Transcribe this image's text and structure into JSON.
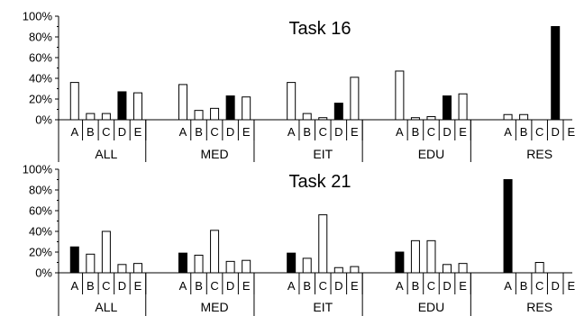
{
  "chart_data": [
    {
      "type": "bar",
      "title": "Task 16",
      "ylim": [
        0,
        100
      ],
      "yticks": [
        "0%",
        "20%",
        "40%",
        "60%",
        "80%",
        "100%"
      ],
      "groups": [
        {
          "name": "ALL",
          "categories": [
            "A",
            "B",
            "C",
            "D",
            "E"
          ],
          "values": [
            36,
            6,
            6,
            27,
            26
          ],
          "highlight": [
            "D"
          ]
        },
        {
          "name": "MED",
          "categories": [
            "A",
            "B",
            "C",
            "D",
            "E"
          ],
          "values": [
            34,
            9,
            11,
            23,
            22
          ],
          "highlight": [
            "D"
          ]
        },
        {
          "name": "EIT",
          "categories": [
            "A",
            "B",
            "C",
            "D",
            "E"
          ],
          "values": [
            36,
            6,
            2,
            16,
            41
          ],
          "highlight": [
            "D"
          ]
        },
        {
          "name": "EDU",
          "categories": [
            "A",
            "B",
            "C",
            "D",
            "E"
          ],
          "values": [
            47,
            2,
            3,
            23,
            25
          ],
          "highlight": [
            "D"
          ]
        },
        {
          "name": "RES",
          "categories": [
            "A",
            "B",
            "C",
            "D",
            "E"
          ],
          "values": [
            5,
            5,
            0,
            90,
            0
          ],
          "highlight": [
            "D"
          ]
        }
      ],
      "colors": {
        "correct": "#000000",
        "other": "#ffffff",
        "stroke": "#000000"
      }
    },
    {
      "type": "bar",
      "title": "Task 21",
      "ylim": [
        0,
        100
      ],
      "yticks": [
        "0%",
        "20%",
        "40%",
        "60%",
        "80%",
        "100%"
      ],
      "groups": [
        {
          "name": "ALL",
          "categories": [
            "A",
            "B",
            "C",
            "D",
            "E"
          ],
          "values": [
            25,
            18,
            40,
            8,
            9
          ],
          "highlight": [
            "A"
          ]
        },
        {
          "name": "MED",
          "categories": [
            "A",
            "B",
            "C",
            "D",
            "E"
          ],
          "values": [
            19,
            17,
            41,
            11,
            12
          ],
          "highlight": [
            "A"
          ]
        },
        {
          "name": "EIT",
          "categories": [
            "A",
            "B",
            "C",
            "D",
            "E"
          ],
          "values": [
            19,
            14,
            56,
            5,
            6
          ],
          "highlight": [
            "A"
          ]
        },
        {
          "name": "EDU",
          "categories": [
            "A",
            "B",
            "C",
            "D",
            "E"
          ],
          "values": [
            20,
            31,
            31,
            8,
            9
          ],
          "highlight": [
            "A"
          ]
        },
        {
          "name": "RES",
          "categories": [
            "A",
            "B",
            "C",
            "D",
            "E"
          ],
          "values": [
            90,
            0,
            10,
            0,
            0
          ],
          "highlight": [
            "A"
          ]
        }
      ],
      "colors": {
        "correct": "#000000",
        "other": "#ffffff",
        "stroke": "#000000"
      }
    }
  ]
}
